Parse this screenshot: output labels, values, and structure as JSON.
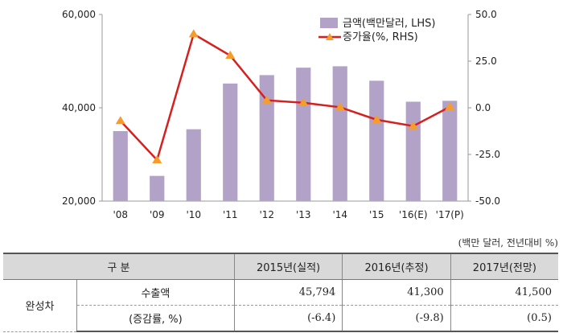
{
  "chart_data": {
    "type": "bar",
    "categories": [
      "'08",
      "'09",
      "'10",
      "'11",
      "'12",
      "'13",
      "'14",
      "'15",
      "'16(E)",
      "'17(P)"
    ],
    "series": [
      {
        "name": "금액(백만달러, LHS)",
        "type": "bar",
        "axis": "left",
        "values": [
          35000,
          25400,
          35400,
          45200,
          47000,
          48600,
          48900,
          45794,
          41300,
          41500
        ]
      },
      {
        "name": "증가율(%, RHS)",
        "type": "line",
        "axis": "right",
        "values": [
          -7.0,
          -28.0,
          39.5,
          28.0,
          4.0,
          2.7,
          0.3,
          -6.4,
          -9.8,
          0.5
        ]
      }
    ],
    "left_axis": {
      "min": 20000,
      "max": 60000,
      "ticks": [
        "20,000",
        "40,000",
        "60,000"
      ],
      "tick_values": [
        20000,
        40000,
        60000
      ]
    },
    "right_axis": {
      "min": -50,
      "max": 50,
      "ticks": [
        "50.0",
        "25.0",
        "0.0",
        "-25.0",
        "-50.0"
      ],
      "tick_values": [
        50,
        25,
        0,
        -25,
        -50
      ]
    },
    "colors": {
      "bar": "#b3a2c7",
      "line": "#d62020",
      "marker": "#f59c2a"
    },
    "legend_position": "top-right"
  },
  "table": {
    "unit_note": "(백만 달러, 전년대비 %)",
    "headers": [
      "구 분",
      "2015년(실적)",
      "2016년(추정)",
      "2017년(전망)"
    ],
    "category": "완성차",
    "rows": [
      {
        "label": "수출액",
        "values": [
          "45,794",
          "41,300",
          "41,500"
        ]
      },
      {
        "label": "(증감률, %)",
        "values": [
          "(-6.4)",
          "(-9.8)",
          "(0.5)"
        ]
      }
    ]
  }
}
